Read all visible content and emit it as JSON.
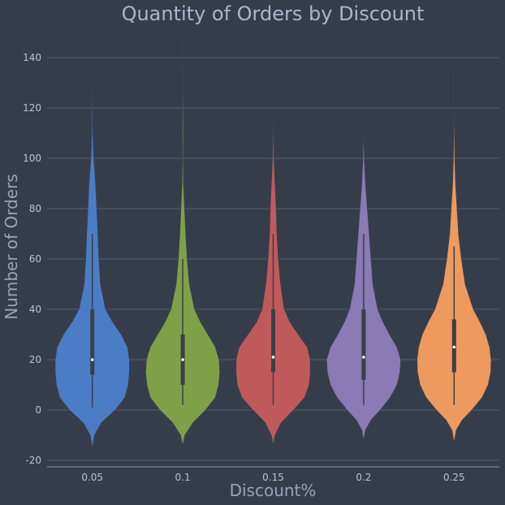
{
  "chart_data": {
    "type": "violin",
    "title": "Quantity of Orders by Discount",
    "xlabel": "Discount%",
    "ylabel": "Number of Orders",
    "ylim": [
      -22,
      146
    ],
    "yticks": [
      -20,
      0,
      20,
      40,
      60,
      80,
      100,
      120,
      140
    ],
    "grid": true,
    "categories": [
      "0.05",
      "0.1",
      "0.15",
      "0.2",
      "0.25"
    ],
    "colors": [
      "#4a7dc5",
      "#80a048",
      "#c05a5a",
      "#8a7ab5",
      "#ee9a5e"
    ],
    "violins": [
      {
        "category": "0.05",
        "min": 1,
        "q1": 14,
        "median": 20,
        "q3": 40,
        "max": 70,
        "kde_range": [
          -15,
          137
        ],
        "profile": [
          [
            -15,
            0
          ],
          [
            -10,
            0.06
          ],
          [
            -5,
            0.25
          ],
          [
            0,
            0.62
          ],
          [
            5,
            0.88
          ],
          [
            10,
            0.97
          ],
          [
            15,
            1.0
          ],
          [
            20,
            1.0
          ],
          [
            25,
            0.95
          ],
          [
            30,
            0.78
          ],
          [
            35,
            0.55
          ],
          [
            40,
            0.36
          ],
          [
            50,
            0.22
          ],
          [
            60,
            0.18
          ],
          [
            70,
            0.15
          ],
          [
            80,
            0.12
          ],
          [
            90,
            0.09
          ],
          [
            100,
            0.04
          ],
          [
            110,
            0.015
          ],
          [
            120,
            0.01
          ],
          [
            130,
            0.005
          ],
          [
            137,
            0
          ]
        ]
      },
      {
        "category": "0.1",
        "min": 2,
        "q1": 10,
        "median": 20,
        "q3": 30,
        "max": 60,
        "kde_range": [
          -14,
          146
        ],
        "profile": [
          [
            -14,
            0
          ],
          [
            -10,
            0.06
          ],
          [
            -5,
            0.28
          ],
          [
            0,
            0.62
          ],
          [
            5,
            0.88
          ],
          [
            10,
            0.97
          ],
          [
            15,
            1.0
          ],
          [
            20,
            0.98
          ],
          [
            25,
            0.88
          ],
          [
            30,
            0.68
          ],
          [
            35,
            0.48
          ],
          [
            40,
            0.32
          ],
          [
            50,
            0.18
          ],
          [
            60,
            0.12
          ],
          [
            70,
            0.08
          ],
          [
            80,
            0.05
          ],
          [
            90,
            0.02
          ],
          [
            100,
            0.01
          ],
          [
            110,
            0.015
          ],
          [
            120,
            0.012
          ],
          [
            130,
            0.006
          ],
          [
            146,
            0
          ]
        ]
      },
      {
        "category": "0.15",
        "min": 2,
        "q1": 15,
        "median": 21,
        "q3": 40,
        "max": 70,
        "kde_range": [
          -14,
          116
        ],
        "profile": [
          [
            -14,
            0
          ],
          [
            -10,
            0.05
          ],
          [
            -5,
            0.22
          ],
          [
            0,
            0.55
          ],
          [
            5,
            0.85
          ],
          [
            10,
            0.97
          ],
          [
            15,
            1.0
          ],
          [
            20,
            1.0
          ],
          [
            25,
            0.92
          ],
          [
            30,
            0.68
          ],
          [
            35,
            0.45
          ],
          [
            40,
            0.3
          ],
          [
            50,
            0.2
          ],
          [
            60,
            0.14
          ],
          [
            70,
            0.1
          ],
          [
            80,
            0.08
          ],
          [
            90,
            0.05
          ],
          [
            100,
            0.02
          ],
          [
            110,
            0.008
          ],
          [
            116,
            0
          ]
        ]
      },
      {
        "category": "0.2",
        "min": 2,
        "q1": 12,
        "median": 21,
        "q3": 40,
        "max": 70,
        "kde_range": [
          -12,
          114
        ],
        "profile": [
          [
            -12,
            0
          ],
          [
            -8,
            0.05
          ],
          [
            -4,
            0.2
          ],
          [
            0,
            0.45
          ],
          [
            5,
            0.72
          ],
          [
            10,
            0.9
          ],
          [
            15,
            0.98
          ],
          [
            20,
            1.0
          ],
          [
            25,
            0.9
          ],
          [
            30,
            0.7
          ],
          [
            35,
            0.52
          ],
          [
            40,
            0.38
          ],
          [
            50,
            0.25
          ],
          [
            60,
            0.2
          ],
          [
            70,
            0.15
          ],
          [
            80,
            0.1
          ],
          [
            90,
            0.05
          ],
          [
            100,
            0.02
          ],
          [
            110,
            0.005
          ],
          [
            114,
            0
          ]
        ]
      },
      {
        "category": "0.25",
        "min": 2,
        "q1": 15,
        "median": 25,
        "q3": 36,
        "max": 65,
        "kde_range": [
          -13,
          135
        ],
        "profile": [
          [
            -13,
            0
          ],
          [
            -8,
            0.06
          ],
          [
            -4,
            0.22
          ],
          [
            0,
            0.48
          ],
          [
            5,
            0.76
          ],
          [
            10,
            0.92
          ],
          [
            15,
            0.99
          ],
          [
            20,
            1.0
          ],
          [
            25,
            0.96
          ],
          [
            30,
            0.86
          ],
          [
            35,
            0.7
          ],
          [
            40,
            0.52
          ],
          [
            50,
            0.3
          ],
          [
            60,
            0.2
          ],
          [
            70,
            0.12
          ],
          [
            80,
            0.08
          ],
          [
            90,
            0.04
          ],
          [
            100,
            0.02
          ],
          [
            110,
            0.01
          ],
          [
            120,
            0.006
          ],
          [
            135,
            0
          ]
        ]
      }
    ]
  }
}
